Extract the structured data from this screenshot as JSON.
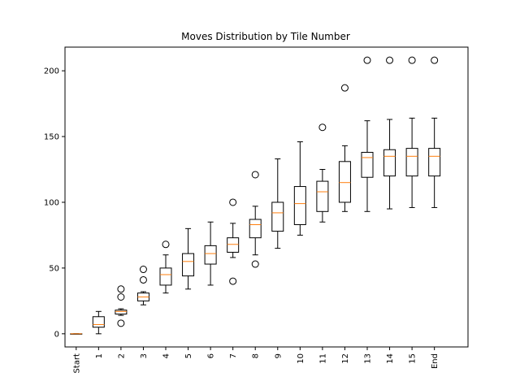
{
  "chart_data": {
    "type": "box",
    "title": "Moves Distribution by Tile Number",
    "xlabel": "",
    "ylabel": "",
    "ylim": [
      -10,
      218
    ],
    "yticks": [
      0,
      50,
      100,
      150,
      200
    ],
    "grid": false,
    "categories": [
      "Start",
      "1",
      "2",
      "3",
      "4",
      "5",
      "6",
      "7",
      "8",
      "9",
      "10",
      "11",
      "12",
      "13",
      "14",
      "15",
      "End"
    ],
    "boxes": [
      {
        "label": "Start",
        "whisker_low": 0,
        "q1": 0,
        "median": 0,
        "q3": 0,
        "whisker_high": 0,
        "outliers": []
      },
      {
        "label": "1",
        "whisker_low": 0,
        "q1": 5,
        "median": 7,
        "q3": 13,
        "whisker_high": 17,
        "outliers": []
      },
      {
        "label": "2",
        "whisker_low": 14,
        "q1": 15,
        "median": 17,
        "q3": 18,
        "whisker_high": 19,
        "outliers": [
          8,
          28,
          34
        ]
      },
      {
        "label": "3",
        "whisker_low": 22,
        "q1": 25,
        "median": 28,
        "q3": 31,
        "whisker_high": 32,
        "outliers": [
          41,
          49
        ]
      },
      {
        "label": "4",
        "whisker_low": 31,
        "q1": 37,
        "median": 45,
        "q3": 50,
        "whisker_high": 60,
        "outliers": [
          68
        ]
      },
      {
        "label": "5",
        "whisker_low": 34,
        "q1": 44,
        "median": 55,
        "q3": 61,
        "whisker_high": 80,
        "outliers": []
      },
      {
        "label": "6",
        "whisker_low": 37,
        "q1": 53,
        "median": 61,
        "q3": 67,
        "whisker_high": 85,
        "outliers": []
      },
      {
        "label": "7",
        "whisker_low": 58,
        "q1": 62,
        "median": 68,
        "q3": 73,
        "whisker_high": 84,
        "outliers": [
          40,
          100
        ]
      },
      {
        "label": "8",
        "whisker_low": 60,
        "q1": 73,
        "median": 83,
        "q3": 87,
        "whisker_high": 97,
        "outliers": [
          53,
          121
        ]
      },
      {
        "label": "9",
        "whisker_low": 65,
        "q1": 78,
        "median": 92,
        "q3": 100,
        "whisker_high": 133,
        "outliers": []
      },
      {
        "label": "10",
        "whisker_low": 75,
        "q1": 83,
        "median": 99,
        "q3": 112,
        "whisker_high": 146,
        "outliers": []
      },
      {
        "label": "11",
        "whisker_low": 85,
        "q1": 93,
        "median": 108,
        "q3": 116,
        "whisker_high": 125,
        "outliers": [
          157
        ]
      },
      {
        "label": "12",
        "whisker_low": 93,
        "q1": 100,
        "median": 115,
        "q3": 131,
        "whisker_high": 143,
        "outliers": [
          187
        ]
      },
      {
        "label": "13",
        "whisker_low": 93,
        "q1": 119,
        "median": 134,
        "q3": 138,
        "whisker_high": 162,
        "outliers": [
          208
        ]
      },
      {
        "label": "14",
        "whisker_low": 95,
        "q1": 120,
        "median": 135,
        "q3": 140,
        "whisker_high": 163,
        "outliers": [
          208
        ]
      },
      {
        "label": "15",
        "whisker_low": 96,
        "q1": 120,
        "median": 135,
        "q3": 141,
        "whisker_high": 164,
        "outliers": [
          208
        ]
      },
      {
        "label": "End",
        "whisker_low": 96,
        "q1": 120,
        "median": 135,
        "q3": 141,
        "whisker_high": 164,
        "outliers": [
          208
        ]
      }
    ],
    "colors": {
      "box": "#000000",
      "median": "#ff7f0e",
      "outlier": "#000000",
      "axis": "#000000"
    }
  }
}
